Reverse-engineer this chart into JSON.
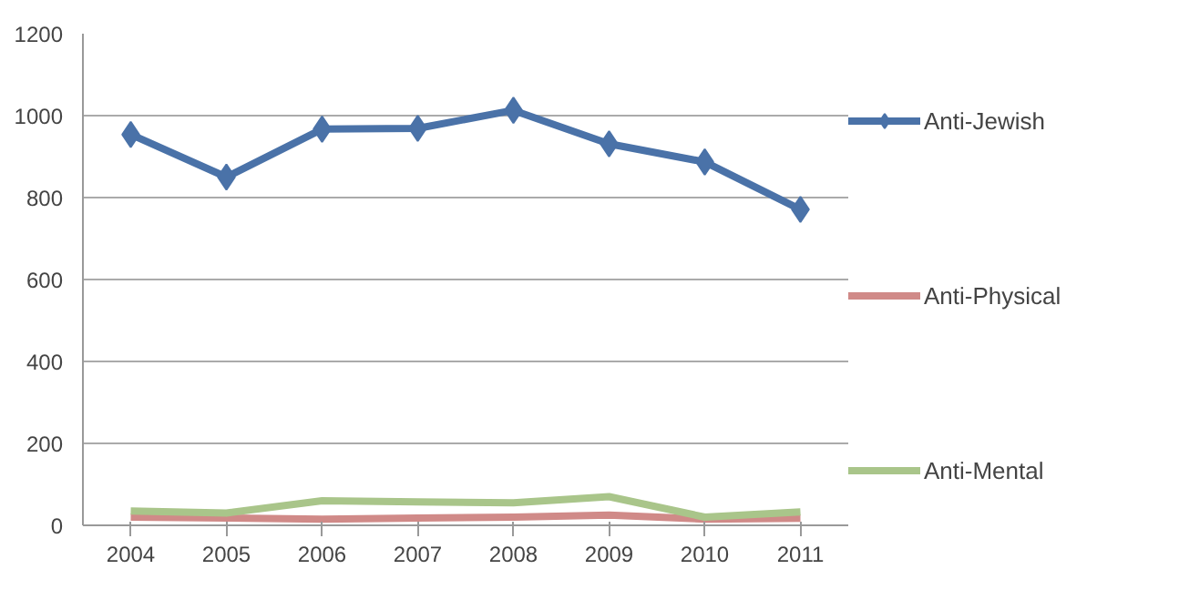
{
  "chart_data": {
    "type": "line",
    "categories": [
      "2004",
      "2005",
      "2006",
      "2007",
      "2008",
      "2009",
      "2010",
      "2011"
    ],
    "series": [
      {
        "name": "Anti-Jewish",
        "color": "#4a72a8",
        "marker": "diamond",
        "values": [
          954,
          850,
          967,
          969,
          1013,
          931,
          887,
          771
        ]
      },
      {
        "name": "Anti-Physical",
        "color": "#d08a88",
        "marker": "none",
        "values": [
          20,
          18,
          15,
          18,
          20,
          25,
          15,
          17
        ]
      },
      {
        "name": "Anti-Mental",
        "color": "#a9c58a",
        "marker": "none",
        "values": [
          35,
          30,
          60,
          57,
          55,
          70,
          20,
          33
        ]
      }
    ],
    "ylim": [
      0,
      1200
    ],
    "yticks": [
      0,
      200,
      400,
      600,
      800,
      1000,
      1200
    ],
    "grid": "y",
    "legend": "right"
  }
}
